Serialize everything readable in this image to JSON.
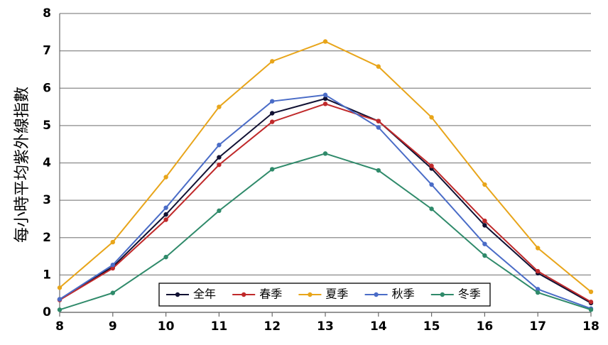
{
  "chart_data": {
    "type": "line",
    "title": "",
    "xlabel": "",
    "ylabel": "每小時平均紫外線指數",
    "xlim": [
      8,
      18
    ],
    "ylim": [
      0,
      8
    ],
    "x": [
      8,
      9,
      10,
      11,
      12,
      13,
      14,
      15,
      16,
      17,
      18
    ],
    "x_ticks": [
      "8",
      "9",
      "10",
      "11",
      "12",
      "13",
      "14",
      "15",
      "16",
      "17",
      "18"
    ],
    "y_ticks": [
      "0",
      "1",
      "2",
      "3",
      "4",
      "5",
      "6",
      "7",
      "8"
    ],
    "grid": "horizontal",
    "legend_position": "bottom-center",
    "series": [
      {
        "name": "全年",
        "color": "#111133",
        "values": [
          0.35,
          1.22,
          2.62,
          4.15,
          5.33,
          5.72,
          5.12,
          3.85,
          2.33,
          1.05,
          0.25
        ]
      },
      {
        "name": "春季",
        "color": "#c0292a",
        "values": [
          0.33,
          1.18,
          2.48,
          3.95,
          5.1,
          5.58,
          5.12,
          3.92,
          2.45,
          1.1,
          0.28
        ]
      },
      {
        "name": "夏季",
        "color": "#e8a51a",
        "values": [
          0.66,
          1.88,
          3.62,
          5.5,
          6.72,
          7.25,
          6.58,
          5.22,
          3.42,
          1.72,
          0.55
        ]
      },
      {
        "name": "秋季",
        "color": "#4a6cc7",
        "values": [
          0.35,
          1.27,
          2.8,
          4.48,
          5.65,
          5.82,
          4.95,
          3.42,
          1.83,
          0.62,
          0.1
        ]
      },
      {
        "name": "冬季",
        "color": "#2f8a6a",
        "values": [
          0.07,
          0.52,
          1.48,
          2.72,
          3.83,
          4.25,
          3.8,
          2.77,
          1.52,
          0.53,
          0.07
        ]
      }
    ]
  }
}
